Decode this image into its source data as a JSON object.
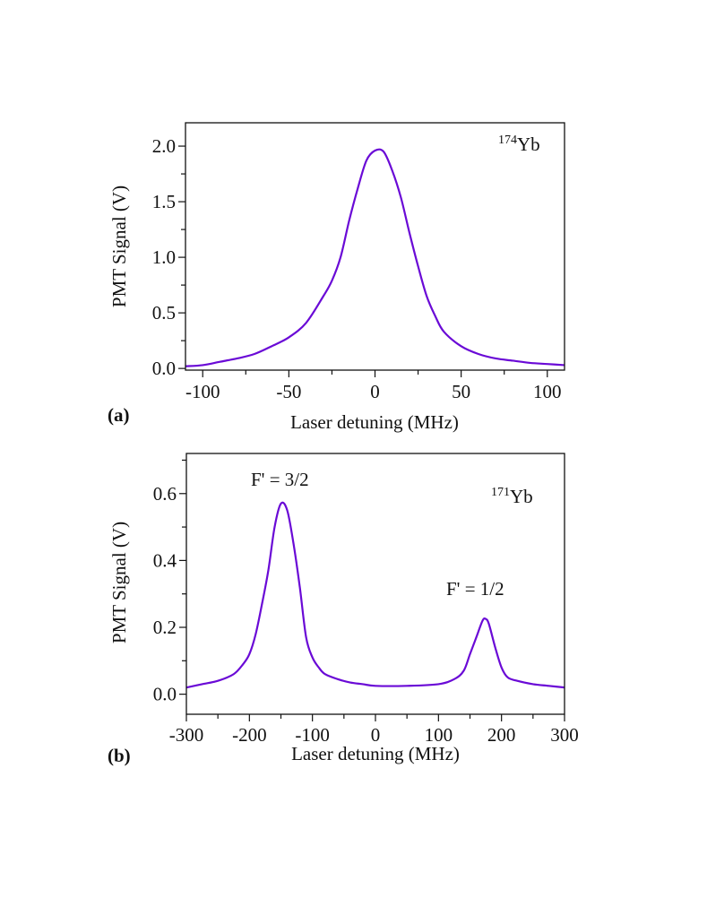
{
  "chart_data": [
    {
      "type": "line",
      "panel_label": "(a)",
      "xlabel": "Laser detuning (MHz)",
      "ylabel": "PMT Signal (V)",
      "xlim": [
        -110,
        110
      ],
      "ylim": [
        -0.015,
        2.21
      ],
      "xticks": [
        -100,
        -50,
        0,
        50,
        100
      ],
      "xtick_labels": [
        "-100",
        "-50",
        "0",
        "50",
        "100"
      ],
      "xminor_step": 25,
      "yticks": [
        0,
        0.5,
        1.0,
        1.5,
        2.0
      ],
      "ytick_labels": [
        "0.0",
        "0.5",
        "1.0",
        "1.5",
        "2.0"
      ],
      "yminor_step": 0.25,
      "grid": false,
      "color": "#6a0ad6",
      "annotations": [
        {
          "sup": "174",
          "text": "Yb"
        }
      ],
      "series": [
        {
          "x": [
            -110,
            -100,
            -90,
            -80,
            -70,
            -60,
            -50,
            -40,
            -30,
            -25,
            -20,
            -15,
            -10,
            -5,
            0,
            5,
            10,
            15,
            20,
            25,
            30,
            35,
            40,
            50,
            60,
            70,
            80,
            90,
            100,
            110
          ],
          "y": [
            0.02,
            0.03,
            0.06,
            0.09,
            0.13,
            0.2,
            0.28,
            0.41,
            0.65,
            0.79,
            1.0,
            1.33,
            1.62,
            1.87,
            1.96,
            1.95,
            1.78,
            1.54,
            1.22,
            0.92,
            0.65,
            0.47,
            0.33,
            0.2,
            0.13,
            0.09,
            0.07,
            0.05,
            0.04,
            0.03
          ]
        }
      ]
    },
    {
      "type": "line",
      "panel_label": "(b)",
      "xlabel": "Laser detuning (MHz)",
      "ylabel": "PMT Signal (V)",
      "xlim": [
        -300,
        300
      ],
      "ylim": [
        -0.06,
        0.72
      ],
      "xticks": [
        -300,
        -200,
        -100,
        0,
        100,
        200,
        300
      ],
      "xtick_labels": [
        "-300",
        "-200",
        "-100",
        "0",
        "100",
        "200",
        "300"
      ],
      "xminor_step": 50,
      "yticks": [
        0,
        0.2,
        0.4,
        0.6
      ],
      "ytick_labels": [
        "0.0",
        "0.2",
        "0.4",
        "0.6"
      ],
      "yminor_step": 0.1,
      "grid": false,
      "color": "#6a0ad6",
      "annotations": [
        {
          "sup": "171",
          "text": "Yb"
        },
        {
          "text": "F' = 3/2"
        },
        {
          "text": "F' = 1/2"
        }
      ],
      "series": [
        {
          "x": [
            -300,
            -275,
            -250,
            -225,
            -210,
            -200,
            -190,
            -180,
            -170,
            -160,
            -150,
            -140,
            -130,
            -120,
            -110,
            -100,
            -90,
            -80,
            -60,
            -40,
            -20,
            0,
            50,
            100,
            125,
            140,
            150,
            160,
            170,
            175,
            180,
            190,
            200,
            210,
            225,
            250,
            275,
            300
          ],
          "y": [
            0.02,
            0.03,
            0.04,
            0.06,
            0.09,
            0.12,
            0.18,
            0.27,
            0.37,
            0.5,
            0.57,
            0.55,
            0.45,
            0.32,
            0.17,
            0.11,
            0.08,
            0.06,
            0.045,
            0.035,
            0.03,
            0.025,
            0.025,
            0.03,
            0.045,
            0.07,
            0.12,
            0.17,
            0.22,
            0.225,
            0.21,
            0.14,
            0.08,
            0.05,
            0.04,
            0.03,
            0.025,
            0.02
          ]
        }
      ]
    }
  ]
}
